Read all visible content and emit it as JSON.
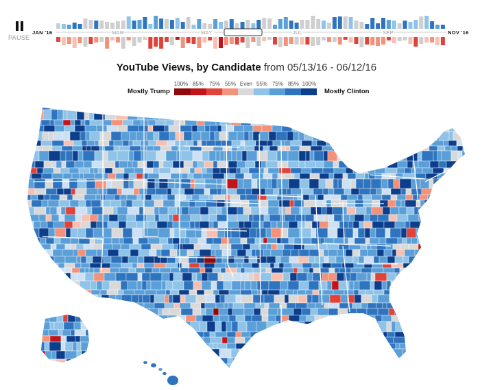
{
  "controls": {
    "pause_label": "PAUSE"
  },
  "timeline": {
    "start_label": "JAN '16",
    "end_label": "NOV '16",
    "month_labels": [
      "MAR",
      "MAY",
      "JUL",
      "SEP"
    ],
    "selection": {
      "start": "05/13/16",
      "end": "06/12/16"
    }
  },
  "title": {
    "main": "YouTube Views, by Candidate",
    "range": "from 05/13/16 - 06/12/16"
  },
  "legend": {
    "left": "Mostly Trump",
    "right": "Mostly Clinton",
    "bins": [
      {
        "label": "100%",
        "color": "#8e0b0b"
      },
      {
        "label": "85%",
        "color": "#c0151b"
      },
      {
        "label": "75%",
        "color": "#e0433a"
      },
      {
        "label": "55%",
        "color": "#f3917a"
      },
      {
        "label": "Even",
        "color": "#d9d9d9"
      },
      {
        "label": "55%",
        "color": "#8fc3e8"
      },
      {
        "label": "75%",
        "color": "#5a9fd8"
      },
      {
        "label": "85%",
        "color": "#2f74bf"
      },
      {
        "label": "100%",
        "color": "#0d3e8c"
      }
    ]
  },
  "colors": {
    "trump_scale": [
      "#8e0b0b",
      "#c0151b",
      "#e0433a",
      "#f3917a",
      "#f6c1b3"
    ],
    "even": "#d9d9d9",
    "clinton_scale": [
      "#cde1f3",
      "#8fc3e8",
      "#5a9fd8",
      "#2f74bf",
      "#0d3e8c"
    ],
    "state_border": "#ffffff"
  }
}
